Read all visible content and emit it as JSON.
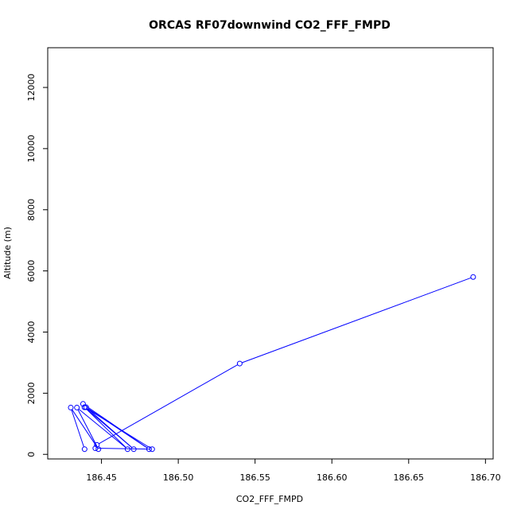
{
  "chart_data": {
    "type": "scatter",
    "title": "ORCAS RF07downwind CO2_FFF_FMPD",
    "xlabel": "CO2_FFF_FMPD",
    "ylabel": "Altitude (m)",
    "xlim": [
      186.415,
      186.705
    ],
    "ylim": [
      -150,
      13300
    ],
    "xticks": [
      "186.45",
      "186.50",
      "186.55",
      "186.60",
      "186.65",
      "186.70"
    ],
    "yticks": [
      "0",
      "2000",
      "4000",
      "6000",
      "8000",
      "10000",
      "12000"
    ],
    "grid": false,
    "legend": "none",
    "series": [
      {
        "color": "#0000ff",
        "marker": "open-circle",
        "line": true,
        "x": [
          186.692,
          186.54,
          186.447,
          186.446,
          186.483,
          186.439,
          186.438,
          186.481,
          186.44,
          186.471,
          186.439,
          186.467,
          186.434,
          186.448,
          186.43,
          186.439
        ],
        "y": [
          5800,
          2970,
          310,
          200,
          170,
          1540,
          1650,
          170,
          1540,
          170,
          1540,
          170,
          1530,
          170,
          1530,
          170
        ]
      }
    ]
  }
}
